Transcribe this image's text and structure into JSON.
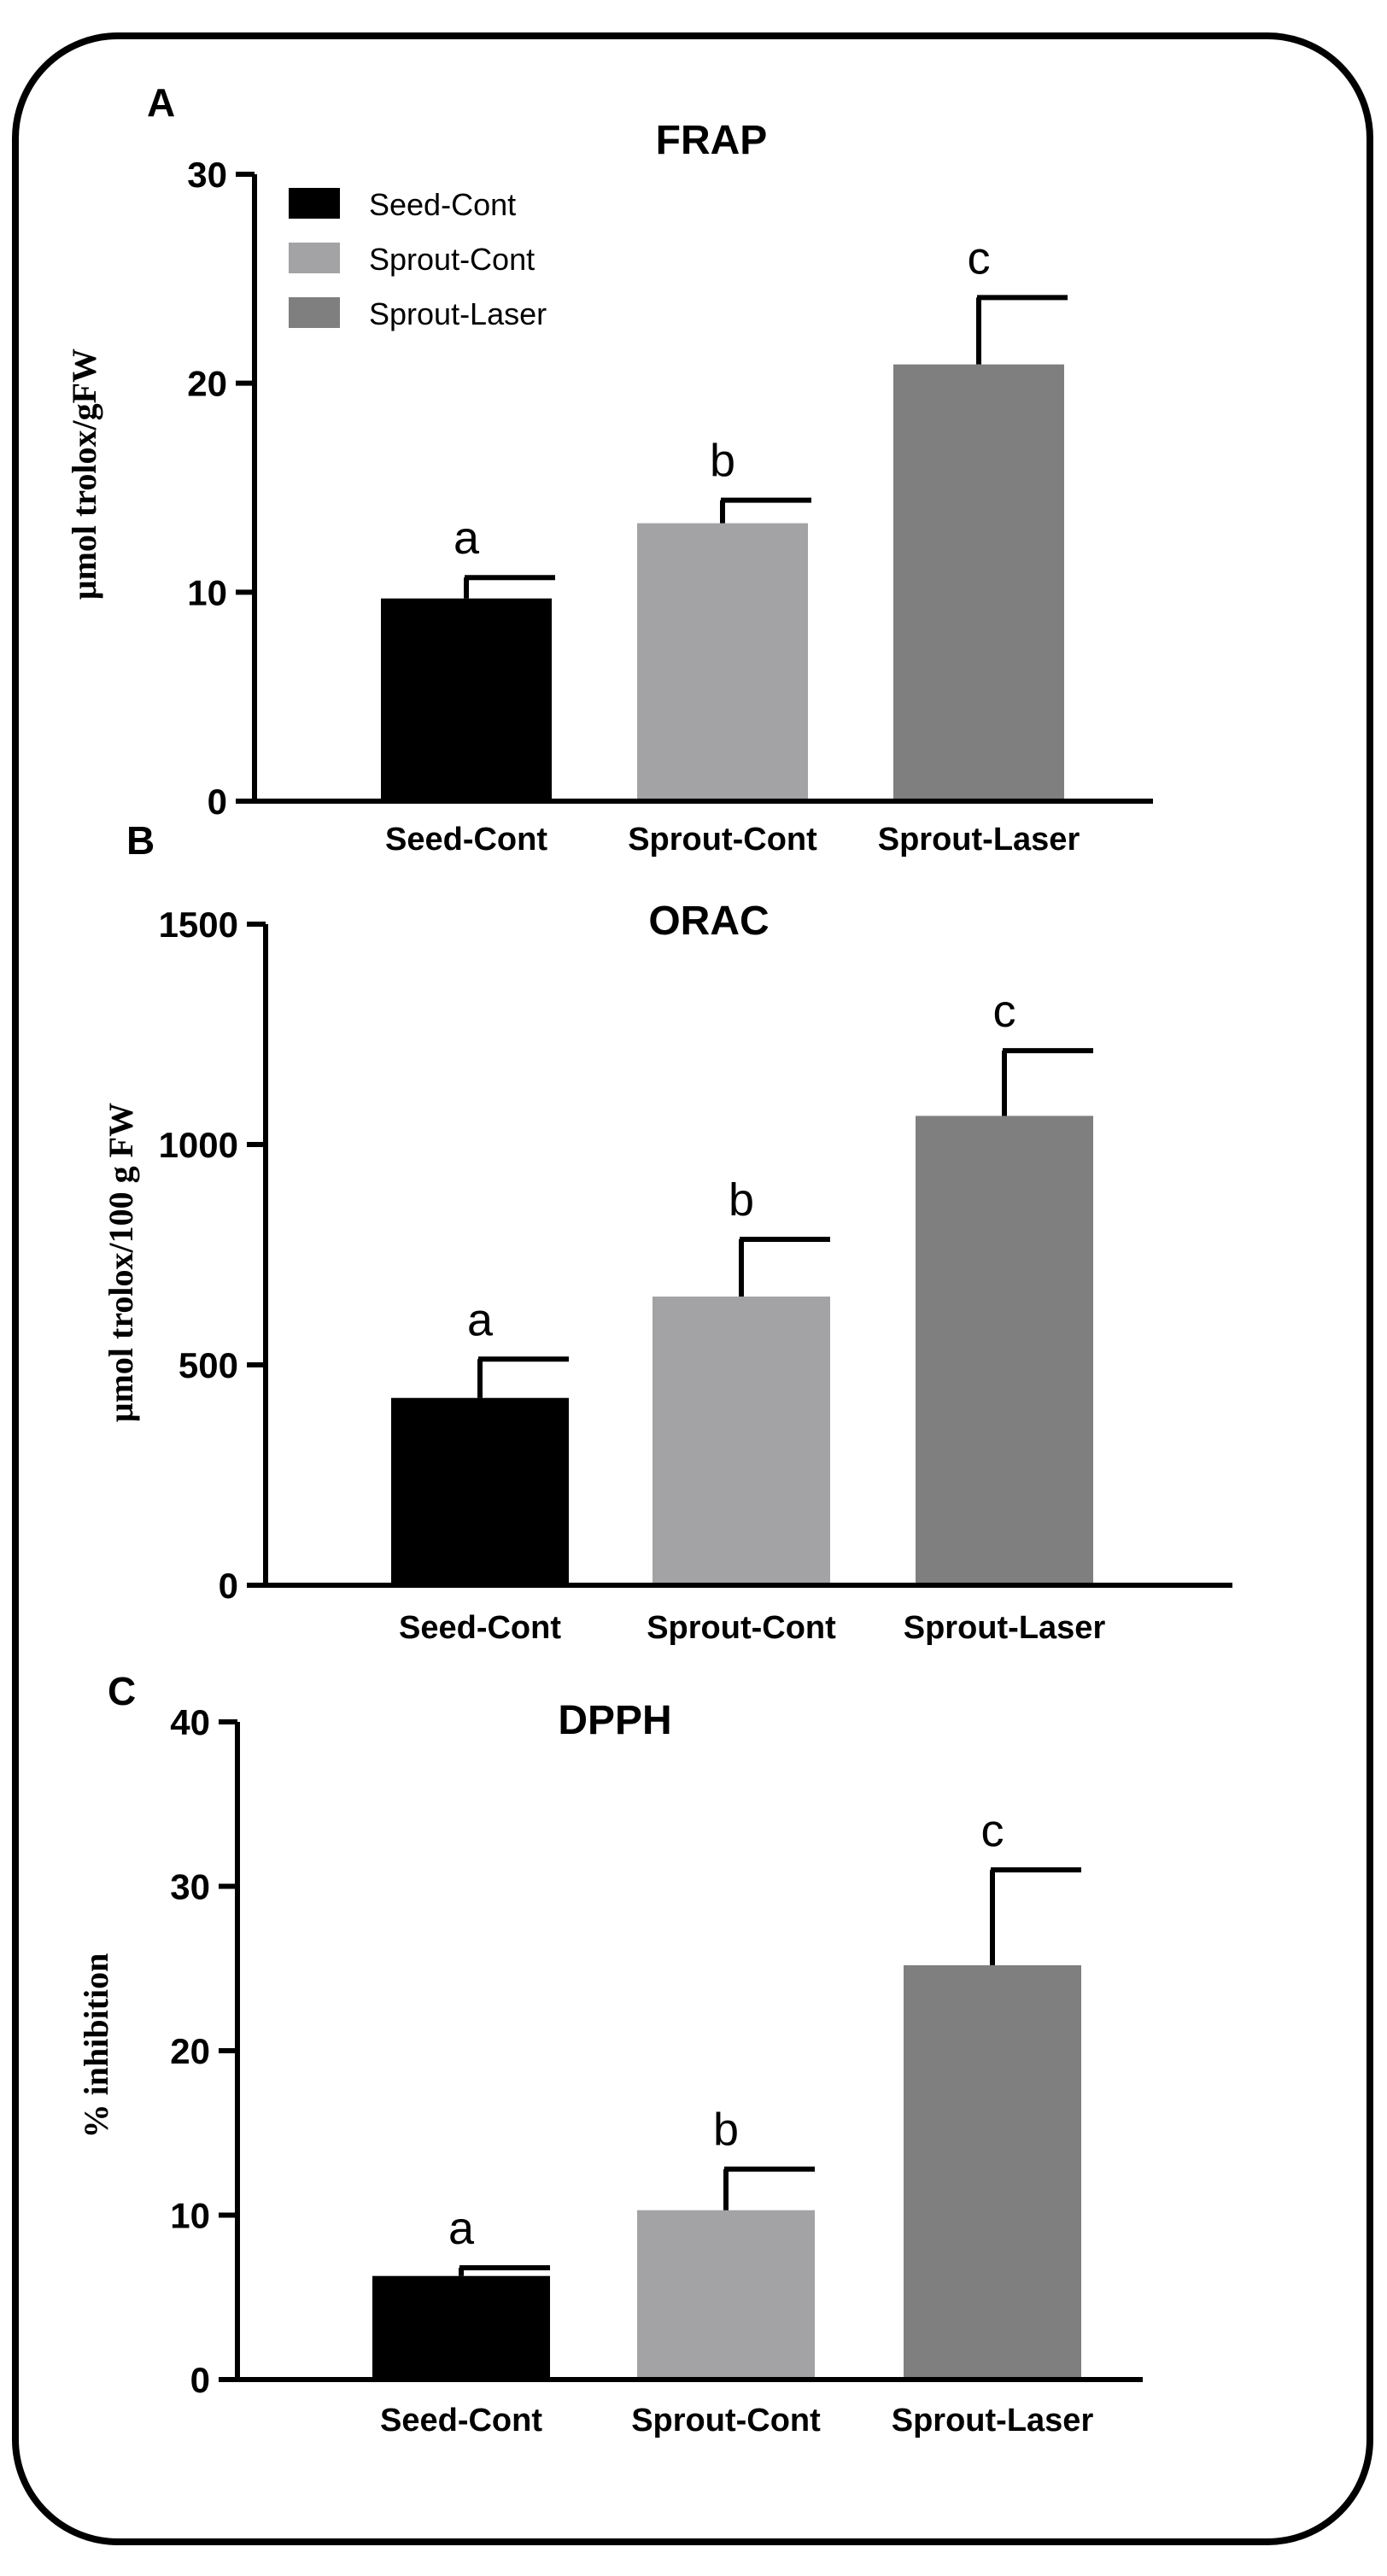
{
  "colors": {
    "seed_cont": "#000000",
    "sprout_cont": "#a3a3a6",
    "sprout_laser": "#7f7f7f",
    "axis": "#000000"
  },
  "legend": [
    {
      "label": "Seed-Cont",
      "color": "#000000"
    },
    {
      "label": "Sprout-Cont",
      "color": "#a3a3a6"
    },
    {
      "label": "Sprout-Laser",
      "color": "#7f7f7f"
    }
  ],
  "chart_data": [
    {
      "panel": "A",
      "type": "bar",
      "title": "FRAP",
      "ylabel": "μmol trolox/gFW",
      "xlabel": "",
      "ylim": [
        0,
        30
      ],
      "yticks": [
        0,
        10,
        20,
        30
      ],
      "categories": [
        "Seed-Cont",
        "Sprout-Cont",
        "Sprout-Laser"
      ],
      "values": [
        9.7,
        13.3,
        20.9
      ],
      "errors": [
        1.0,
        1.1,
        3.2
      ],
      "significance": [
        "a",
        "b",
        "c"
      ],
      "legend_position": "top-left"
    },
    {
      "panel": "B",
      "type": "bar",
      "title": "ORAC",
      "ylabel": "μmol trolox/100 g FW",
      "xlabel": "",
      "ylim": [
        0,
        1500
      ],
      "yticks": [
        0,
        500,
        1000,
        1500
      ],
      "categories": [
        "Seed-Cont",
        "Sprout-Cont",
        "Sprout-Laser"
      ],
      "values": [
        425,
        655,
        1065
      ],
      "errors": [
        88,
        130,
        148
      ],
      "significance": [
        "a",
        "b",
        "c"
      ]
    },
    {
      "panel": "C",
      "type": "bar",
      "title": "DPPH",
      "ylabel": "% inhibition",
      "xlabel": "",
      "ylim": [
        0,
        40
      ],
      "yticks": [
        0,
        10,
        20,
        30,
        40
      ],
      "categories": [
        "Seed-Cont",
        "Sprout-Cont",
        "Sprout-Laser"
      ],
      "values": [
        6.3,
        10.3,
        25.2
      ],
      "errors": [
        0.5,
        2.5,
        5.8
      ],
      "significance": [
        "a",
        "b",
        "c"
      ]
    }
  ]
}
